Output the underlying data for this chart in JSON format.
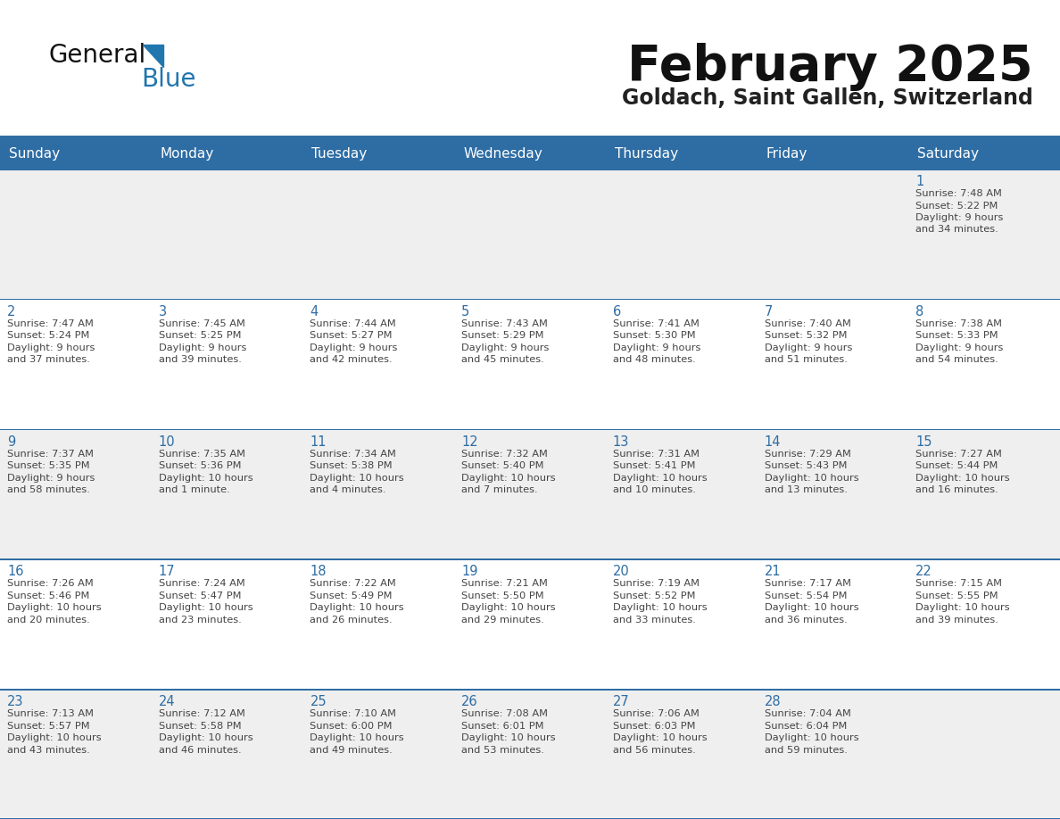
{
  "title": "February 2025",
  "subtitle": "Goldach, Saint Gallen, Switzerland",
  "days_of_week": [
    "Sunday",
    "Monday",
    "Tuesday",
    "Wednesday",
    "Thursday",
    "Friday",
    "Saturday"
  ],
  "header_bg": "#2E6DA4",
  "header_text_color": "#FFFFFF",
  "cell_bg_light": "#EFEFEF",
  "cell_bg_white": "#FFFFFF",
  "grid_line_color": "#2E6DA4",
  "day_number_color": "#2E6DA4",
  "text_color": "#444444",
  "logo_general_color": "#1a1a1a",
  "logo_blue_color": "#2176AE",
  "calendar_data": [
    [
      null,
      null,
      null,
      null,
      null,
      null,
      {
        "day": 1,
        "sunrise": "7:48 AM",
        "sunset": "5:22 PM",
        "daylight": "9 hours",
        "daylight2": "and 34 minutes."
      }
    ],
    [
      {
        "day": 2,
        "sunrise": "7:47 AM",
        "sunset": "5:24 PM",
        "daylight": "9 hours",
        "daylight2": "and 37 minutes."
      },
      {
        "day": 3,
        "sunrise": "7:45 AM",
        "sunset": "5:25 PM",
        "daylight": "9 hours",
        "daylight2": "and 39 minutes."
      },
      {
        "day": 4,
        "sunrise": "7:44 AM",
        "sunset": "5:27 PM",
        "daylight": "9 hours",
        "daylight2": "and 42 minutes."
      },
      {
        "day": 5,
        "sunrise": "7:43 AM",
        "sunset": "5:29 PM",
        "daylight": "9 hours",
        "daylight2": "and 45 minutes."
      },
      {
        "day": 6,
        "sunrise": "7:41 AM",
        "sunset": "5:30 PM",
        "daylight": "9 hours",
        "daylight2": "and 48 minutes."
      },
      {
        "day": 7,
        "sunrise": "7:40 AM",
        "sunset": "5:32 PM",
        "daylight": "9 hours",
        "daylight2": "and 51 minutes."
      },
      {
        "day": 8,
        "sunrise": "7:38 AM",
        "sunset": "5:33 PM",
        "daylight": "9 hours",
        "daylight2": "and 54 minutes."
      }
    ],
    [
      {
        "day": 9,
        "sunrise": "7:37 AM",
        "sunset": "5:35 PM",
        "daylight": "9 hours",
        "daylight2": "and 58 minutes."
      },
      {
        "day": 10,
        "sunrise": "7:35 AM",
        "sunset": "5:36 PM",
        "daylight": "10 hours",
        "daylight2": "and 1 minute."
      },
      {
        "day": 11,
        "sunrise": "7:34 AM",
        "sunset": "5:38 PM",
        "daylight": "10 hours",
        "daylight2": "and 4 minutes."
      },
      {
        "day": 12,
        "sunrise": "7:32 AM",
        "sunset": "5:40 PM",
        "daylight": "10 hours",
        "daylight2": "and 7 minutes."
      },
      {
        "day": 13,
        "sunrise": "7:31 AM",
        "sunset": "5:41 PM",
        "daylight": "10 hours",
        "daylight2": "and 10 minutes."
      },
      {
        "day": 14,
        "sunrise": "7:29 AM",
        "sunset": "5:43 PM",
        "daylight": "10 hours",
        "daylight2": "and 13 minutes."
      },
      {
        "day": 15,
        "sunrise": "7:27 AM",
        "sunset": "5:44 PM",
        "daylight": "10 hours",
        "daylight2": "and 16 minutes."
      }
    ],
    [
      {
        "day": 16,
        "sunrise": "7:26 AM",
        "sunset": "5:46 PM",
        "daylight": "10 hours",
        "daylight2": "and 20 minutes."
      },
      {
        "day": 17,
        "sunrise": "7:24 AM",
        "sunset": "5:47 PM",
        "daylight": "10 hours",
        "daylight2": "and 23 minutes."
      },
      {
        "day": 18,
        "sunrise": "7:22 AM",
        "sunset": "5:49 PM",
        "daylight": "10 hours",
        "daylight2": "and 26 minutes."
      },
      {
        "day": 19,
        "sunrise": "7:21 AM",
        "sunset": "5:50 PM",
        "daylight": "10 hours",
        "daylight2": "and 29 minutes."
      },
      {
        "day": 20,
        "sunrise": "7:19 AM",
        "sunset": "5:52 PM",
        "daylight": "10 hours",
        "daylight2": "and 33 minutes."
      },
      {
        "day": 21,
        "sunrise": "7:17 AM",
        "sunset": "5:54 PM",
        "daylight": "10 hours",
        "daylight2": "and 36 minutes."
      },
      {
        "day": 22,
        "sunrise": "7:15 AM",
        "sunset": "5:55 PM",
        "daylight": "10 hours",
        "daylight2": "and 39 minutes."
      }
    ],
    [
      {
        "day": 23,
        "sunrise": "7:13 AM",
        "sunset": "5:57 PM",
        "daylight": "10 hours",
        "daylight2": "and 43 minutes."
      },
      {
        "day": 24,
        "sunrise": "7:12 AM",
        "sunset": "5:58 PM",
        "daylight": "10 hours",
        "daylight2": "and 46 minutes."
      },
      {
        "day": 25,
        "sunrise": "7:10 AM",
        "sunset": "6:00 PM",
        "daylight": "10 hours",
        "daylight2": "and 49 minutes."
      },
      {
        "day": 26,
        "sunrise": "7:08 AM",
        "sunset": "6:01 PM",
        "daylight": "10 hours",
        "daylight2": "and 53 minutes."
      },
      {
        "day": 27,
        "sunrise": "7:06 AM",
        "sunset": "6:03 PM",
        "daylight": "10 hours",
        "daylight2": "and 56 minutes."
      },
      {
        "day": 28,
        "sunrise": "7:04 AM",
        "sunset": "6:04 PM",
        "daylight": "10 hours",
        "daylight2": "and 59 minutes."
      },
      null
    ]
  ]
}
